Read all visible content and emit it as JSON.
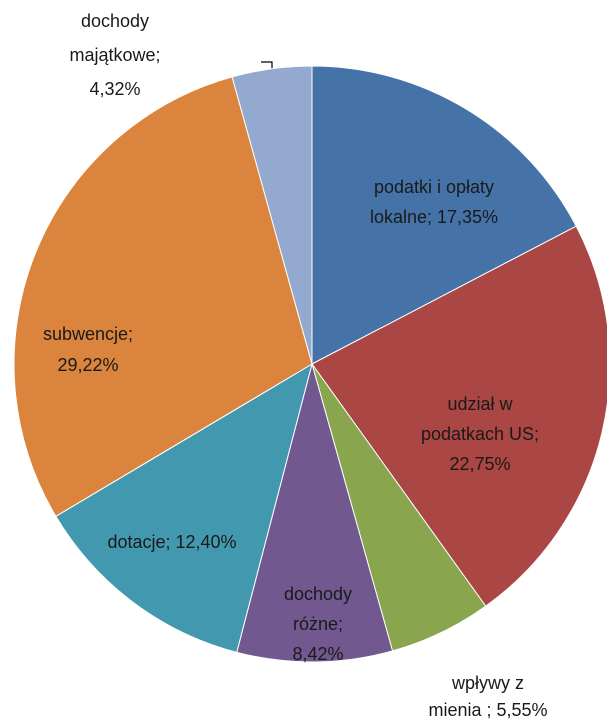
{
  "chart_data": {
    "type": "pie",
    "values": [
      17.35,
      22.75,
      5.55,
      8.42,
      12.4,
      29.22,
      4.32
    ],
    "value_labels": [
      [
        "podatki i opłaty",
        "lokalne; 17,35%"
      ],
      [
        "udział w",
        "podatkach US;",
        "22,75%"
      ],
      [
        "wpływy z",
        "mienia ; 5,55%"
      ],
      [
        "dochody",
        "różne;",
        "8,42%"
      ],
      [
        "dotacje; 12,40%"
      ],
      [
        "subwencje;",
        "29,22%"
      ],
      [
        "dochody",
        "majątkowe;",
        "4,32%"
      ]
    ],
    "colors": [
      "#4572a7",
      "#aa4643",
      "#89a54e",
      "#71588f",
      "#4198af",
      "#db843d",
      "#93a9cf"
    ]
  }
}
